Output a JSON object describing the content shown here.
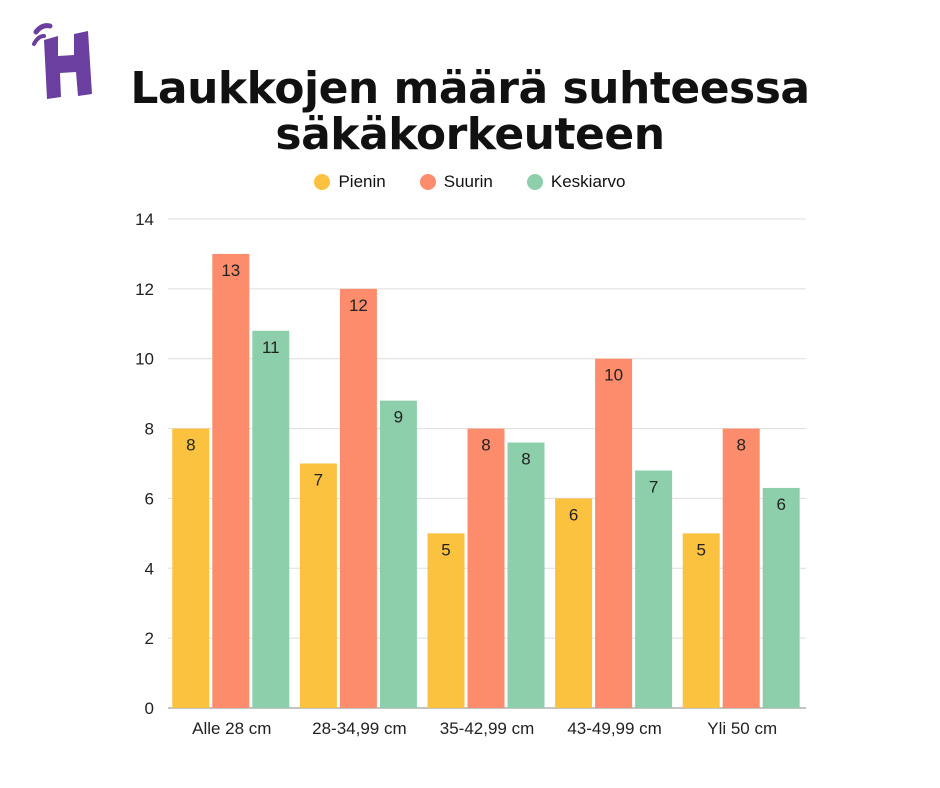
{
  "logo_text": "H",
  "colors": {
    "pienin": "#FBC23F",
    "suurin": "#FC8C6C",
    "keskiarvo": "#8DCFAB",
    "logo": "#6B3FA0",
    "grid": "#dddddd",
    "axis": "#888888"
  },
  "chart_data": {
    "type": "bar",
    "title_lines": [
      "Laukkojen määrä suhteessa",
      "säkäkorkeuteen"
    ],
    "categories": [
      "Alle 28 cm",
      "28-34,99 cm",
      "35-42,99 cm",
      "43-49,99 cm",
      "Yli 50 cm"
    ],
    "series": [
      {
        "name": "Pienin",
        "color": "#FBC23F",
        "values": [
          8,
          7,
          5,
          6,
          5
        ],
        "labels": [
          "8",
          "7",
          "5",
          "6",
          "5"
        ]
      },
      {
        "name": "Suurin",
        "color": "#FC8C6C",
        "values": [
          13,
          12,
          8,
          10,
          8
        ],
        "labels": [
          "13",
          "12",
          "8",
          "10",
          "8"
        ]
      },
      {
        "name": "Keskiarvo",
        "color": "#8DCFAB",
        "values": [
          10.8,
          8.8,
          7.6,
          6.8,
          6.3
        ],
        "labels": [
          "11",
          "9",
          "8",
          "7",
          "6"
        ]
      }
    ],
    "ylim": [
      0,
      14
    ],
    "yticks": [
      0,
      2,
      4,
      6,
      8,
      10,
      12,
      14
    ],
    "xlabel": "",
    "ylabel": "",
    "grid": true,
    "legend_position": "top-center"
  }
}
